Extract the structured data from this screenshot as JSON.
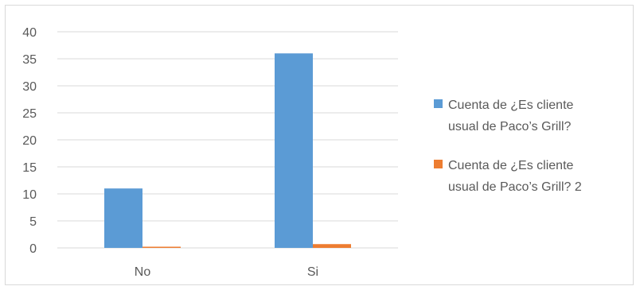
{
  "chart_data": {
    "type": "bar",
    "categories": [
      "No",
      "Si"
    ],
    "series": [
      {
        "name": "Cuenta de ¿Es cliente usual de Paco’s Grill?",
        "name_lines": [
          "Cuenta de ¿Es cliente",
          "usual de Paco’s Grill?"
        ],
        "color": "#5b9bd5",
        "values": [
          11,
          36
        ]
      },
      {
        "name": "Cuenta de ¿Es cliente usual de Paco’s Grill? 2",
        "name_lines": [
          "Cuenta de ¿Es cliente",
          "usual de Paco’s Grill?  2"
        ],
        "color": "#ed7d31",
        "values": [
          0.2,
          0.7
        ]
      }
    ],
    "ylim": [
      0,
      40
    ],
    "yticks": [
      "0",
      "5",
      "10",
      "15",
      "20",
      "25",
      "30",
      "35",
      "40"
    ],
    "grid": true,
    "legend": "right",
    "title": "",
    "xlabel": "",
    "ylabel": ""
  }
}
